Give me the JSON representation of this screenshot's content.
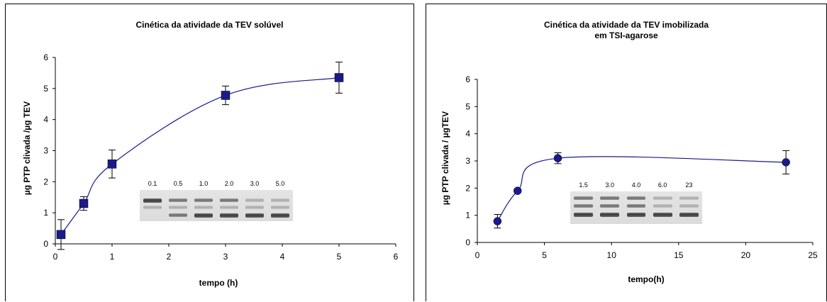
{
  "chart_data": [
    {
      "type": "line",
      "title": "Cinética da atividade da TEV solúvel",
      "xlabel": "tempo (h)",
      "ylabel": "µg PTP clivada /µg TEV",
      "xlim": [
        0,
        6
      ],
      "ylim": [
        0,
        6
      ],
      "xticks": [
        0,
        1,
        2,
        3,
        4,
        5,
        6
      ],
      "yticks": [
        0,
        1,
        2,
        3,
        4,
        5,
        6
      ],
      "series": [
        {
          "marker": "square",
          "color": "#1a1a8c",
          "points": [
            {
              "x": 0.1,
              "y": 0.3,
              "err": 0.48
            },
            {
              "x": 0.5,
              "y": 1.3,
              "err": 0.22
            },
            {
              "x": 1.0,
              "y": 2.57,
              "err": 0.45
            },
            {
              "x": 3.0,
              "y": 4.78,
              "err": 0.3
            },
            {
              "x": 5.0,
              "y": 5.35,
              "err": 0.5
            }
          ]
        }
      ],
      "gel": {
        "lanes": [
          "0.1",
          "0.5",
          "1.0",
          "2.0",
          "3.0",
          "5.0"
        ]
      }
    },
    {
      "type": "line",
      "title": "Cinética da atividade da TEV imobilizada em TSI-agarose",
      "title_lines": [
        "Cinética da atividade da TEV imobilizada",
        "em TSI-agarose"
      ],
      "xlabel": "tempo(h)",
      "ylabel": "µg PTP clivada / µgTEV",
      "xlim": [
        0,
        25
      ],
      "ylim": [
        0,
        6
      ],
      "xticks": [
        0,
        5,
        10,
        15,
        20,
        25
      ],
      "yticks": [
        0,
        1,
        2,
        3,
        4,
        5,
        6
      ],
      "series": [
        {
          "marker": "circle",
          "color": "#1a1a8c",
          "points": [
            {
              "x": 1.5,
              "y": 0.78,
              "err": 0.25
            },
            {
              "x": 3.0,
              "y": 1.9,
              "err": 0.06
            },
            {
              "x": 6.0,
              "y": 3.1,
              "err": 0.2
            },
            {
              "x": 23.0,
              "y": 2.95,
              "err": 0.43
            }
          ]
        }
      ],
      "gel": {
        "lanes": [
          "1.5",
          "3.0",
          "4.0",
          "6.0",
          "23"
        ]
      }
    }
  ]
}
